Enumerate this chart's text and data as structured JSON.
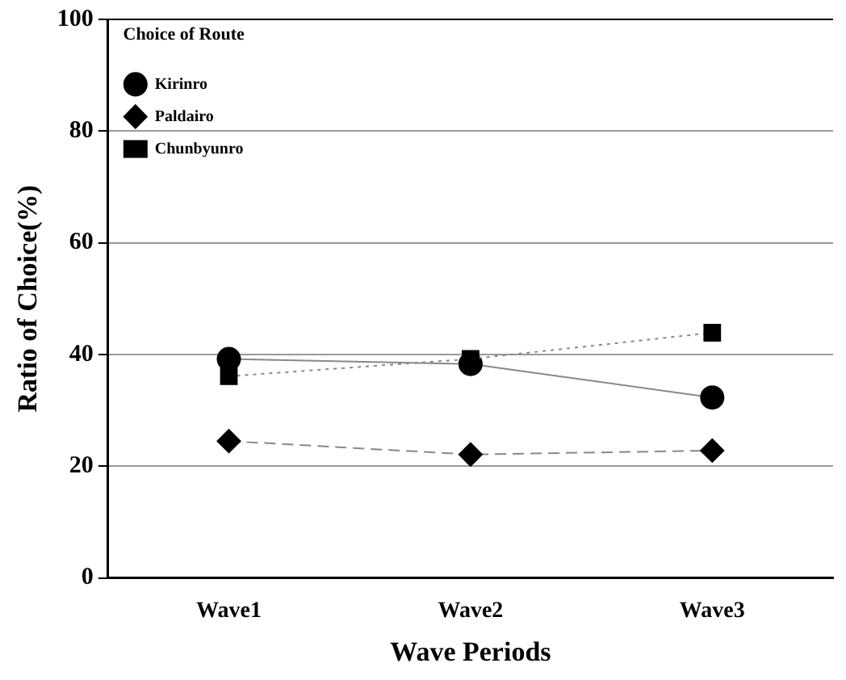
{
  "chart_data": {
    "type": "line",
    "xlabel": "Wave Periods",
    "ylabel": "Ratio of Choice(%)",
    "legend_title": "Choice of Route",
    "categories": [
      "Wave1",
      "Wave2",
      "Wave3"
    ],
    "series": [
      {
        "name": "Kirinro",
        "color": "#000000",
        "values": [
          39.2,
          38.3,
          32.3
        ],
        "marker": "circle",
        "line_style": "solid"
      },
      {
        "name": "Paldairo",
        "color": "#000000",
        "values": [
          24.5,
          22.1,
          22.8
        ],
        "marker": "diamond",
        "line_style": "dashed"
      },
      {
        "name": "Chunbyunro",
        "color": "#000000",
        "values": [
          36.1,
          39.2,
          43.9
        ],
        "marker": "square",
        "line_style": "dotted"
      }
    ],
    "ylim": [
      0,
      100
    ],
    "yticks": [
      0,
      20,
      40,
      60,
      80,
      100
    ],
    "grid": "y",
    "legend": "top left"
  }
}
